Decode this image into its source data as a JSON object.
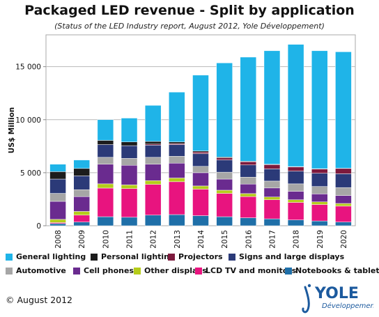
{
  "chart_data": {
    "type": "bar",
    "stacked": true,
    "title": "Packaged LED revenue - Split by application",
    "subtitle": "(Status of the LED Industry report, August 2012, Yole Développement)",
    "ylabel": "US$ Million",
    "xlabel": "",
    "ylim": [
      0,
      18000
    ],
    "yticks": [
      0,
      5000,
      10000,
      15000
    ],
    "ytick_labels": [
      "0",
      "5 000",
      "10 000",
      "15 000"
    ],
    "grid": true,
    "legend_position": "bottom",
    "categories": [
      "2008",
      "2009",
      "2010",
      "2011",
      "2012",
      "2013",
      "2014",
      "2015",
      "2016",
      "2017",
      "2018",
      "2019",
      "2020"
    ],
    "series": [
      {
        "name": "Notebooks & tablets",
        "color": "#1f6fa8",
        "values": [
          200,
          350,
          850,
          800,
          1000,
          1050,
          950,
          850,
          750,
          650,
          550,
          450,
          350
        ]
      },
      {
        "name": "LCD TV and monitors",
        "color": "#e8147f",
        "values": [
          100,
          650,
          2700,
          2700,
          2900,
          3100,
          2500,
          2200,
          2000,
          1800,
          1650,
          1550,
          1500
        ]
      },
      {
        "name": "Other displays",
        "color": "#b5cc1a",
        "values": [
          300,
          350,
          400,
          350,
          350,
          350,
          300,
          300,
          280,
          260,
          250,
          250,
          250
        ]
      },
      {
        "name": "Cell phones",
        "color": "#6a2b8f",
        "values": [
          1700,
          1400,
          1850,
          1850,
          1550,
          1400,
          1250,
          1050,
          900,
          850,
          800,
          750,
          750
        ]
      },
      {
        "name": "Automotive",
        "color": "#a6a6a6",
        "values": [
          750,
          650,
          650,
          650,
          650,
          650,
          600,
          650,
          650,
          650,
          700,
          700,
          750
        ]
      },
      {
        "name": "Signs and large displays",
        "color": "#2b3a78",
        "values": [
          1350,
          1300,
          1200,
          1200,
          1150,
          1100,
          1200,
          1150,
          1150,
          1150,
          1200,
          1250,
          1300
        ]
      },
      {
        "name": "Projectors",
        "color": "#7d1a3d",
        "values": [
          0,
          0,
          0,
          0,
          100,
          100,
          150,
          200,
          300,
          400,
          400,
          400,
          500
        ]
      },
      {
        "name": "Personal lighting",
        "color": "#1c1c1c",
        "values": [
          700,
          700,
          400,
          350,
          250,
          150,
          100,
          80,
          50,
          40,
          30,
          30,
          20
        ]
      },
      {
        "name": "General lighting",
        "color": "#1fb4e8",
        "values": [
          700,
          800,
          1950,
          2250,
          3400,
          4700,
          7150,
          8870,
          9820,
          10700,
          11520,
          11120,
          10980
        ]
      }
    ]
  },
  "footer": {
    "copyright": "© August 2012",
    "logo_text": "YOLE",
    "logo_subtext": "Développement"
  }
}
